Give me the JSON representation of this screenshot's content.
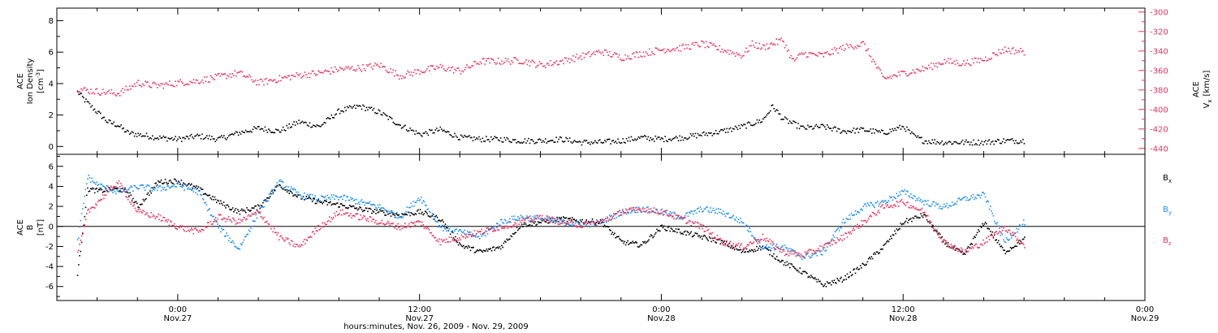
{
  "chart_data": [
    {
      "type": "scatter",
      "panel": "top",
      "ylabel": [
        "ACE",
        "Ion Density",
        "[cm⁻³]"
      ],
      "ylim": [
        -0.5,
        8.8
      ],
      "yticks": [
        0,
        2,
        4,
        6,
        8
      ],
      "y2label": [
        "ACE",
        "Vx [km/s]"
      ],
      "y2lim": [
        -446,
        -296
      ],
      "y2ticks": [
        -300,
        -320,
        -340,
        -360,
        -380,
        -400,
        -420,
        -440
      ],
      "colors": {
        "density": "#000000",
        "velocity": "#e8335f"
      },
      "series": [
        {
          "name": "",
          "axis": "left",
          "color": "#000000",
          "x": [
            -5.0,
            -4.5,
            -4.0,
            -3.5,
            -3.0,
            -2.5,
            -2.0,
            -1.5,
            -1.0,
            0.0,
            1.0,
            2.0,
            3.0,
            4.0,
            5.0,
            6.0,
            7.0,
            8.0,
            9.0,
            10.0,
            11.0,
            12.0,
            13.0,
            14.0,
            15.0,
            16.0,
            17.0,
            18.0,
            19.0,
            20.0,
            21.0,
            22.0,
            23.0,
            24.0,
            25.0,
            26.0,
            27.0,
            28.0,
            29.0,
            29.5,
            30.0,
            31.0,
            32.0,
            33.0,
            34.0,
            35.0,
            36.0,
            36.5,
            37.0,
            38.0,
            39.0,
            40.0,
            41.0,
            42.0
          ],
          "y": [
            3.5,
            2.8,
            2.2,
            1.6,
            1.4,
            0.9,
            0.8,
            0.7,
            0.6,
            0.5,
            0.7,
            0.5,
            0.9,
            1.2,
            1.0,
            1.6,
            1.3,
            2.3,
            2.6,
            2.2,
            1.4,
            0.8,
            1.1,
            0.6,
            0.5,
            0.5,
            0.4,
            0.4,
            0.5,
            0.3,
            0.3,
            0.4,
            0.6,
            0.5,
            0.6,
            0.8,
            1.0,
            1.3,
            1.7,
            2.6,
            1.8,
            1.2,
            1.3,
            1.0,
            1.1,
            0.9,
            1.3,
            0.7,
            0.4,
            0.3,
            0.3,
            0.3,
            0.4,
            0.4
          ]
        },
        {
          "name": "",
          "axis": "right",
          "color": "#e8335f",
          "x": [
            -5.0,
            -4.5,
            -4.0,
            -3.5,
            -3.0,
            -2.5,
            -2.0,
            -1.5,
            -1.0,
            0.0,
            1.0,
            2.0,
            3.0,
            4.0,
            5.0,
            6.0,
            7.0,
            8.0,
            9.0,
            10.0,
            11.0,
            12.0,
            13.0,
            14.0,
            15.0,
            16.0,
            17.0,
            18.0,
            19.0,
            20.0,
            21.0,
            22.0,
            23.0,
            24.0,
            25.0,
            26.0,
            27.0,
            28.0,
            28.5,
            29.0,
            30.0,
            30.5,
            31.0,
            32.0,
            33.0,
            34.0,
            35.0,
            36.0,
            37.0,
            38.0,
            39.0,
            40.0,
            41.0,
            42.0
          ],
          "y": [
            -378,
            -380,
            -381,
            -382,
            -383,
            -378,
            -372,
            -374,
            -375,
            -372,
            -370,
            -366,
            -362,
            -372,
            -368,
            -364,
            -362,
            -358,
            -357,
            -354,
            -365,
            -360,
            -356,
            -360,
            -350,
            -350,
            -349,
            -354,
            -350,
            -345,
            -340,
            -346,
            -342,
            -338,
            -336,
            -332,
            -338,
            -344,
            -332,
            -336,
            -328,
            -350,
            -342,
            -344,
            -336,
            -332,
            -368,
            -362,
            -358,
            -350,
            -352,
            -348,
            -338,
            -340
          ]
        }
      ]
    },
    {
      "type": "scatter",
      "panel": "bottom",
      "ylabel": [
        "ACE",
        "B",
        "[nT]"
      ],
      "ylim": [
        -7.4,
        7.2
      ],
      "yticks": [
        -6,
        -4,
        -2,
        0,
        2,
        4,
        6
      ],
      "zero_line": true,
      "legend": [
        "Bx",
        "By",
        "Bz"
      ],
      "legend_position": "right",
      "series": [
        {
          "name": "Bx",
          "color": "#000000",
          "x": [
            -5.0,
            -4.5,
            -4.0,
            -3.0,
            -2.5,
            -2.0,
            -1.0,
            0.0,
            1.0,
            2.0,
            3.0,
            4.0,
            5.0,
            6.0,
            7.0,
            8.0,
            9.0,
            10.0,
            11.0,
            12.0,
            13.0,
            14.0,
            15.0,
            16.0,
            17.0,
            18.0,
            19.0,
            20.0,
            21.0,
            22.0,
            23.0,
            24.0,
            25.0,
            26.0,
            27.0,
            28.0,
            29.0,
            30.0,
            31.0,
            32.0,
            33.0,
            34.0,
            35.0,
            36.0,
            37.0,
            38.0,
            39.0,
            40.0,
            41.0,
            42.0
          ],
          "y": [
            -4.8,
            3.8,
            3.6,
            3.8,
            3.5,
            2.0,
            4.5,
            4.6,
            3.8,
            2.5,
            1.5,
            2.0,
            4.2,
            3.0,
            2.5,
            2.2,
            1.8,
            1.5,
            1.2,
            1.5,
            0.8,
            -1.8,
            -2.5,
            -2.0,
            0.2,
            0.5,
            0.8,
            0.6,
            0.5,
            -1.5,
            -1.8,
            0.0,
            -0.5,
            -1.0,
            -1.5,
            -2.5,
            -2.0,
            -3.5,
            -4.5,
            -5.8,
            -5.2,
            -3.8,
            -2.0,
            0.5,
            1.2,
            -1.5,
            -2.8,
            0.5,
            -2.5,
            -1.2
          ]
        },
        {
          "name": "By",
          "color": "#1f8ff0",
          "x": [
            -5.0,
            -4.5,
            -4.0,
            -3.0,
            -2.0,
            -1.0,
            0.0,
            1.0,
            2.0,
            3.0,
            4.0,
            5.0,
            6.0,
            7.0,
            8.0,
            9.0,
            10.0,
            11.0,
            12.0,
            13.0,
            14.0,
            15.0,
            16.0,
            17.0,
            18.0,
            19.0,
            20.0,
            21.0,
            22.0,
            23.0,
            24.0,
            25.0,
            26.0,
            27.0,
            28.0,
            29.0,
            30.0,
            31.0,
            32.0,
            33.0,
            34.0,
            35.0,
            36.0,
            37.0,
            38.0,
            39.0,
            40.0,
            41.0,
            42.0
          ],
          "y": [
            -1.5,
            5.0,
            4.2,
            3.5,
            4.0,
            3.8,
            4.2,
            3.5,
            0.0,
            -2.2,
            1.5,
            4.5,
            3.2,
            2.8,
            3.0,
            2.5,
            2.0,
            1.0,
            3.0,
            0.0,
            -0.5,
            -1.0,
            0.5,
            1.0,
            0.8,
            0.5,
            0.2,
            0.5,
            1.5,
            1.8,
            1.5,
            1.0,
            1.8,
            1.5,
            0.5,
            -2.0,
            -2.0,
            -3.0,
            -2.5,
            0.5,
            2.0,
            2.5,
            3.5,
            2.5,
            2.0,
            2.8,
            3.2,
            -1.5,
            0.5
          ]
        },
        {
          "name": "Bz",
          "color": "#e8335f",
          "x": [
            -5.0,
            -4.5,
            -4.0,
            -3.0,
            -2.0,
            -1.0,
            0.0,
            1.0,
            2.0,
            3.0,
            4.0,
            5.0,
            6.0,
            7.0,
            8.0,
            9.0,
            10.0,
            11.0,
            12.0,
            13.0,
            14.0,
            15.0,
            16.0,
            17.0,
            18.0,
            19.0,
            20.0,
            21.0,
            22.0,
            23.0,
            24.0,
            25.0,
            26.0,
            27.0,
            28.0,
            29.0,
            30.0,
            31.0,
            32.0,
            33.0,
            34.0,
            35.0,
            36.0,
            37.0,
            38.0,
            39.0,
            40.0,
            41.0,
            42.0
          ],
          "y": [
            -2.8,
            1.5,
            2.5,
            4.5,
            1.5,
            1.0,
            0.0,
            -0.5,
            1.0,
            0.5,
            1.5,
            -1.0,
            -2.0,
            0.0,
            1.5,
            1.0,
            0.5,
            0.0,
            0.5,
            -1.5,
            -1.0,
            -0.5,
            0.0,
            0.5,
            1.0,
            0.5,
            0.2,
            0.5,
            1.5,
            1.8,
            1.5,
            0.8,
            0.0,
            -1.5,
            -2.0,
            -1.0,
            -2.5,
            -2.8,
            -2.0,
            -1.0,
            0.5,
            2.0,
            2.5,
            1.5,
            -1.5,
            -2.5,
            -1.5,
            0.0,
            -1.8
          ]
        }
      ]
    }
  ],
  "x_axis": {
    "range_hours": [
      -6,
      48
    ],
    "ticks": [
      {
        "h": 0,
        "label": "0:00",
        "date": "Nov.27"
      },
      {
        "h": 12,
        "label": "12:00",
        "date": "Nov.27"
      },
      {
        "h": 24,
        "label": "0:00",
        "date": "Nov.28"
      },
      {
        "h": 36,
        "label": "12:00",
        "date": "Nov.28"
      },
      {
        "h": 48,
        "label": "0:00",
        "date": "Nov.29"
      }
    ],
    "xlabel": "hours:minutes, Nov. 26, 2009 - Nov. 29, 2009"
  },
  "legend_labels": {
    "bx": "B",
    "by": "B",
    "bz": "B",
    "bx_sub": "x",
    "by_sub": "y",
    "bz_sub": "z"
  },
  "top_labels": {
    "left_1": "ACE",
    "left_2": "Ion Density",
    "left_3": "[cm",
    "left_3_sup": "-3",
    "left_3_end": "]",
    "right_1": "ACE",
    "right_2": "V",
    "right_2_sub": "x",
    "right_3": "[km/s]"
  },
  "bottom_labels": {
    "left_1": "ACE",
    "left_2": "B",
    "left_3": "[nT]"
  }
}
